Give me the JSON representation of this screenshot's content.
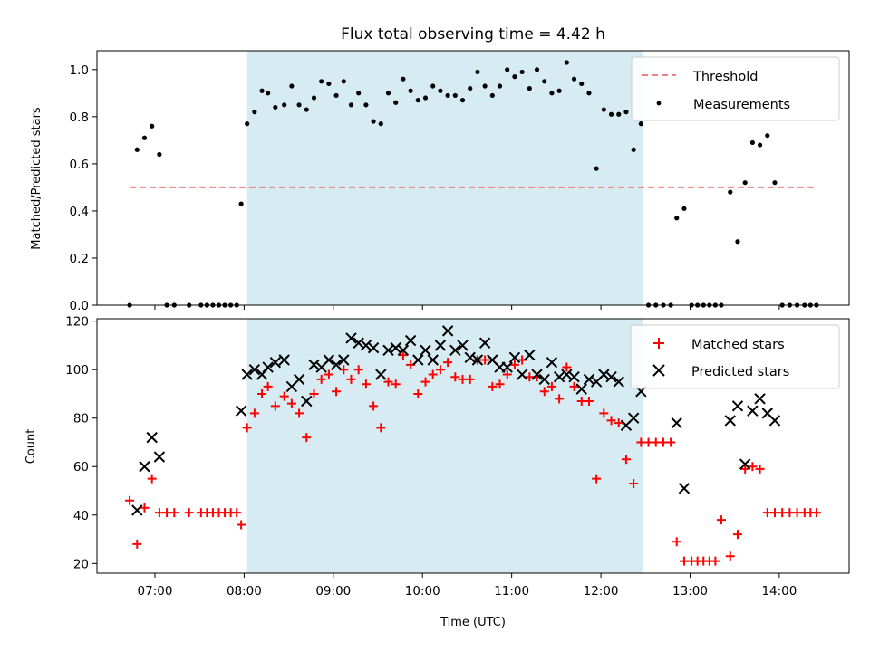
{
  "figure": {
    "title": "Flux total observing time = 4.42 h",
    "xlabel": "Time (UTC)",
    "xticks": [
      "07:00",
      "08:00",
      "09:00",
      "10:00",
      "11:00",
      "12:00",
      "13:00",
      "14:00"
    ],
    "xlim": [
      "06:21",
      "14:47"
    ],
    "shaded_interval": [
      "08:02",
      "12:28"
    ],
    "shade_color": "#add8e6",
    "shade_alpha": 0.5
  },
  "chart_data": [
    {
      "type": "scatter",
      "ylabel": "Matched/Predicted stars",
      "ylim": [
        0,
        1.08
      ],
      "yticks": [
        "0.0",
        "0.2",
        "0.4",
        "0.6",
        "0.8",
        "1.0"
      ],
      "legend": {
        "placement": "top-right",
        "entries": [
          "Threshold",
          "Measurements"
        ]
      },
      "threshold": {
        "name": "Threshold",
        "value": 0.5,
        "x_range": [
          "06:43",
          "14:25"
        ],
        "color": "#f08080",
        "style": "dashed"
      },
      "series": [
        {
          "name": "Measurements",
          "color": "#000000",
          "marker": "dot",
          "points": [
            [
              "06:43",
              0.0
            ],
            [
              "06:48",
              0.66
            ],
            [
              "06:53",
              0.71
            ],
            [
              "06:58",
              0.76
            ],
            [
              "07:03",
              0.64
            ],
            [
              "07:08",
              0.0
            ],
            [
              "07:13",
              0.0
            ],
            [
              "07:23",
              0.0
            ],
            [
              "07:31",
              0.0
            ],
            [
              "07:35",
              0.0
            ],
            [
              "07:39",
              0.0
            ],
            [
              "07:43",
              0.0
            ],
            [
              "07:47",
              0.0
            ],
            [
              "07:51",
              0.0
            ],
            [
              "07:55",
              0.0
            ],
            [
              "07:58",
              0.43
            ],
            [
              "08:02",
              0.77
            ],
            [
              "08:07",
              0.82
            ],
            [
              "08:12",
              0.91
            ],
            [
              "08:16",
              0.9
            ],
            [
              "08:21",
              0.84
            ],
            [
              "08:27",
              0.85
            ],
            [
              "08:32",
              0.93
            ],
            [
              "08:37",
              0.85
            ],
            [
              "08:42",
              0.83
            ],
            [
              "08:47",
              0.88
            ],
            [
              "08:52",
              0.95
            ],
            [
              "08:57",
              0.94
            ],
            [
              "09:02",
              0.89
            ],
            [
              "09:07",
              0.95
            ],
            [
              "09:12",
              0.85
            ],
            [
              "09:17",
              0.9
            ],
            [
              "09:22",
              0.85
            ],
            [
              "09:27",
              0.78
            ],
            [
              "09:32",
              0.77
            ],
            [
              "09:37",
              0.9
            ],
            [
              "09:42",
              0.86
            ],
            [
              "09:47",
              0.96
            ],
            [
              "09:52",
              0.91
            ],
            [
              "09:57",
              0.87
            ],
            [
              "10:02",
              0.88
            ],
            [
              "10:07",
              0.93
            ],
            [
              "10:12",
              0.91
            ],
            [
              "10:17",
              0.89
            ],
            [
              "10:22",
              0.89
            ],
            [
              "10:27",
              0.87
            ],
            [
              "10:32",
              0.92
            ],
            [
              "10:37",
              0.99
            ],
            [
              "10:42",
              0.93
            ],
            [
              "10:47",
              0.89
            ],
            [
              "10:52",
              0.93
            ],
            [
              "10:57",
              1.0
            ],
            [
              "11:02",
              0.97
            ],
            [
              "11:07",
              0.99
            ],
            [
              "11:12",
              0.92
            ],
            [
              "11:17",
              1.0
            ],
            [
              "11:22",
              0.95
            ],
            [
              "11:27",
              0.9
            ],
            [
              "11:32",
              0.91
            ],
            [
              "11:37",
              1.03
            ],
            [
              "11:42",
              0.96
            ],
            [
              "11:47",
              0.94
            ],
            [
              "11:52",
              0.9
            ],
            [
              "11:57",
              0.58
            ],
            [
              "12:02",
              0.83
            ],
            [
              "12:07",
              0.81
            ],
            [
              "12:12",
              0.81
            ],
            [
              "12:17",
              0.82
            ],
            [
              "12:22",
              0.66
            ],
            [
              "12:27",
              0.77
            ],
            [
              "12:32",
              0.0
            ],
            [
              "12:37",
              0.0
            ],
            [
              "12:42",
              0.0
            ],
            [
              "12:47",
              0.0
            ],
            [
              "12:51",
              0.37
            ],
            [
              "12:56",
              0.41
            ],
            [
              "13:01",
              0.0
            ],
            [
              "13:05",
              0.0
            ],
            [
              "13:09",
              0.0
            ],
            [
              "13:13",
              0.0
            ],
            [
              "13:17",
              0.0
            ],
            [
              "13:21",
              0.0
            ],
            [
              "13:27",
              0.48
            ],
            [
              "13:32",
              0.27
            ],
            [
              "13:37",
              0.52
            ],
            [
              "13:42",
              0.69
            ],
            [
              "13:47",
              0.68
            ],
            [
              "13:52",
              0.72
            ],
            [
              "13:57",
              0.52
            ],
            [
              "14:02",
              0.0
            ],
            [
              "14:07",
              0.0
            ],
            [
              "14:12",
              0.0
            ],
            [
              "14:17",
              0.0
            ],
            [
              "14:21",
              0.0
            ],
            [
              "14:25",
              0.0
            ]
          ]
        }
      ]
    },
    {
      "type": "scatter",
      "ylabel": "Count",
      "ylim": [
        16,
        121
      ],
      "yticks": [
        "20",
        "40",
        "60",
        "80",
        "100",
        "120"
      ],
      "legend": {
        "placement": "top-right",
        "entries": [
          "Matched stars",
          "Predicted stars"
        ]
      },
      "series": [
        {
          "name": "Matched stars",
          "color": "#ff0000",
          "marker": "plus",
          "points": [
            [
              "06:43",
              46
            ],
            [
              "06:48",
              28
            ],
            [
              "06:53",
              43
            ],
            [
              "06:58",
              55
            ],
            [
              "07:03",
              41
            ],
            [
              "07:08",
              41
            ],
            [
              "07:13",
              41
            ],
            [
              "07:23",
              41
            ],
            [
              "07:31",
              41
            ],
            [
              "07:35",
              41
            ],
            [
              "07:39",
              41
            ],
            [
              "07:43",
              41
            ],
            [
              "07:47",
              41
            ],
            [
              "07:51",
              41
            ],
            [
              "07:55",
              41
            ],
            [
              "07:58",
              36
            ],
            [
              "08:02",
              76
            ],
            [
              "08:07",
              82
            ],
            [
              "08:12",
              90
            ],
            [
              "08:16",
              93
            ],
            [
              "08:21",
              85
            ],
            [
              "08:27",
              89
            ],
            [
              "08:32",
              86
            ],
            [
              "08:37",
              82
            ],
            [
              "08:42",
              72
            ],
            [
              "08:47",
              90
            ],
            [
              "08:52",
              96
            ],
            [
              "08:57",
              98
            ],
            [
              "09:02",
              91
            ],
            [
              "09:07",
              100
            ],
            [
              "09:12",
              96
            ],
            [
              "09:17",
              100
            ],
            [
              "09:22",
              94
            ],
            [
              "09:27",
              85
            ],
            [
              "09:32",
              76
            ],
            [
              "09:37",
              95
            ],
            [
              "09:42",
              94
            ],
            [
              "09:47",
              106
            ],
            [
              "09:52",
              102
            ],
            [
              "09:57",
              90
            ],
            [
              "10:02",
              95
            ],
            [
              "10:07",
              98
            ],
            [
              "10:12",
              100
            ],
            [
              "10:17",
              103
            ],
            [
              "10:22",
              97
            ],
            [
              "10:27",
              96
            ],
            [
              "10:32",
              96
            ],
            [
              "10:37",
              104
            ],
            [
              "10:42",
              104
            ],
            [
              "10:47",
              93
            ],
            [
              "10:52",
              94
            ],
            [
              "10:57",
              98
            ],
            [
              "11:02",
              102
            ],
            [
              "11:07",
              104
            ],
            [
              "11:12",
              97
            ],
            [
              "11:17",
              97
            ],
            [
              "11:22",
              91
            ],
            [
              "11:27",
              93
            ],
            [
              "11:32",
              88
            ],
            [
              "11:37",
              101
            ],
            [
              "11:42",
              93
            ],
            [
              "11:47",
              87
            ],
            [
              "11:52",
              87
            ],
            [
              "11:57",
              55
            ],
            [
              "12:02",
              82
            ],
            [
              "12:07",
              79
            ],
            [
              "12:12",
              78
            ],
            [
              "12:17",
              63
            ],
            [
              "12:22",
              53
            ],
            [
              "12:27",
              70
            ],
            [
              "12:32",
              70
            ],
            [
              "12:37",
              70
            ],
            [
              "12:42",
              70
            ],
            [
              "12:47",
              70
            ],
            [
              "12:51",
              29
            ],
            [
              "12:56",
              21
            ],
            [
              "13:01",
              21
            ],
            [
              "13:05",
              21
            ],
            [
              "13:09",
              21
            ],
            [
              "13:13",
              21
            ],
            [
              "13:17",
              21
            ],
            [
              "13:21",
              38
            ],
            [
              "13:27",
              23
            ],
            [
              "13:32",
              32
            ],
            [
              "13:37",
              59
            ],
            [
              "13:42",
              60
            ],
            [
              "13:47",
              59
            ],
            [
              "13:52",
              41
            ],
            [
              "13:57",
              41
            ],
            [
              "14:02",
              41
            ],
            [
              "14:07",
              41
            ],
            [
              "14:12",
              41
            ],
            [
              "14:17",
              41
            ],
            [
              "14:21",
              41
            ],
            [
              "14:25",
              41
            ]
          ]
        },
        {
          "name": "Predicted stars",
          "color": "#000000",
          "marker": "x",
          "points": [
            [
              "06:48",
              42
            ],
            [
              "06:53",
              60
            ],
            [
              "06:58",
              72
            ],
            [
              "07:03",
              64
            ],
            [
              "07:58",
              83
            ],
            [
              "08:02",
              98
            ],
            [
              "08:07",
              100
            ],
            [
              "08:12",
              98
            ],
            [
              "08:16",
              101
            ],
            [
              "08:21",
              103
            ],
            [
              "08:27",
              104
            ],
            [
              "08:32",
              93
            ],
            [
              "08:37",
              96
            ],
            [
              "08:42",
              87
            ],
            [
              "08:47",
              102
            ],
            [
              "08:52",
              101
            ],
            [
              "08:57",
              104
            ],
            [
              "09:02",
              102
            ],
            [
              "09:07",
              104
            ],
            [
              "09:12",
              113
            ],
            [
              "09:17",
              111
            ],
            [
              "09:22",
              110
            ],
            [
              "09:27",
              109
            ],
            [
              "09:32",
              98
            ],
            [
              "09:37",
              108
            ],
            [
              "09:42",
              109
            ],
            [
              "09:47",
              108
            ],
            [
              "09:52",
              112
            ],
            [
              "09:57",
              104
            ],
            [
              "10:02",
              108
            ],
            [
              "10:07",
              104
            ],
            [
              "10:12",
              110
            ],
            [
              "10:17",
              116
            ],
            [
              "10:22",
              108
            ],
            [
              "10:27",
              110
            ],
            [
              "10:32",
              105
            ],
            [
              "10:37",
              104
            ],
            [
              "10:42",
              111
            ],
            [
              "10:47",
              104
            ],
            [
              "10:52",
              101
            ],
            [
              "10:57",
              101
            ],
            [
              "11:02",
              105
            ],
            [
              "11:07",
              98
            ],
            [
              "11:12",
              106
            ],
            [
              "11:17",
              98
            ],
            [
              "11:22",
              96
            ],
            [
              "11:27",
              103
            ],
            [
              "11:32",
              97
            ],
            [
              "11:37",
              98
            ],
            [
              "11:42",
              97
            ],
            [
              "11:47",
              92
            ],
            [
              "11:52",
              96
            ],
            [
              "11:57",
              95
            ],
            [
              "12:02",
              98
            ],
            [
              "12:07",
              97
            ],
            [
              "12:12",
              95
            ],
            [
              "12:17",
              77
            ],
            [
              "12:22",
              80
            ],
            [
              "12:27",
              91
            ],
            [
              "12:51",
              78
            ],
            [
              "12:56",
              51
            ],
            [
              "13:27",
              79
            ],
            [
              "13:32",
              85
            ],
            [
              "13:37",
              61
            ],
            [
              "13:42",
              83
            ],
            [
              "13:47",
              88
            ],
            [
              "13:52",
              82
            ],
            [
              "13:57",
              79
            ]
          ]
        }
      ]
    }
  ]
}
